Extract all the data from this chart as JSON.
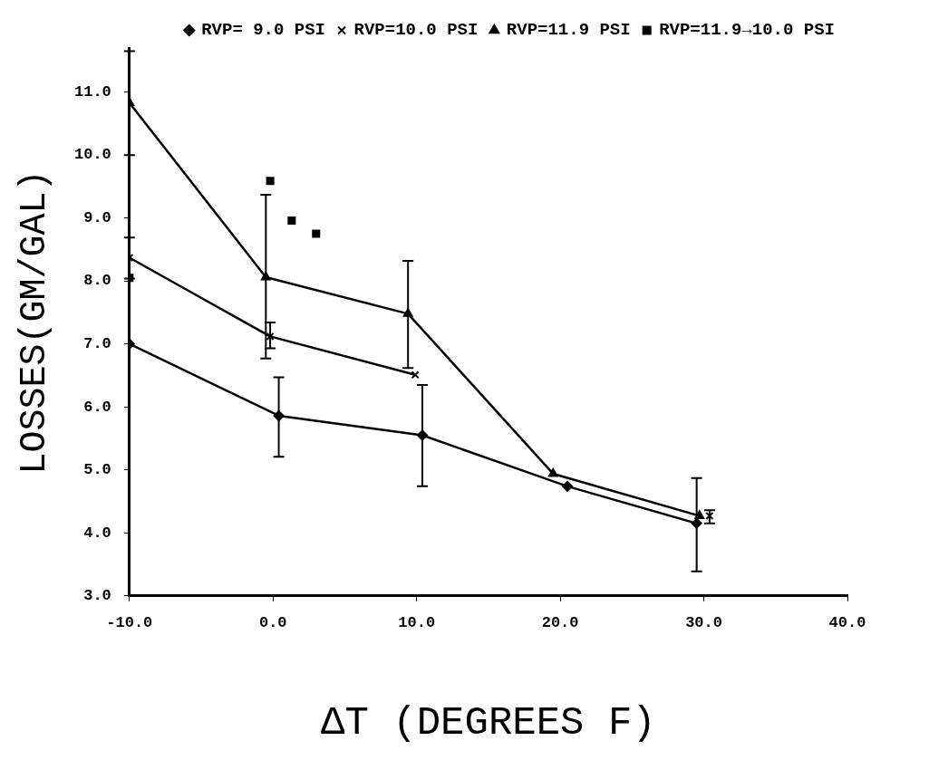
{
  "chart_data": {
    "type": "line",
    "xlabel": "ΔT (DEGREES F)",
    "ylabel": "LOSSES(GM/GAL)",
    "xlim": [
      -10,
      40
    ],
    "ylim": [
      3,
      11.7
    ],
    "xticks": [
      {
        "value": -10,
        "label": "-10.0"
      },
      {
        "value": 0,
        "label": "0.0"
      },
      {
        "value": 10,
        "label": "10.0"
      },
      {
        "value": 20,
        "label": "20.0"
      },
      {
        "value": 30,
        "label": "30.0"
      },
      {
        "value": 40,
        "label": "40.0"
      }
    ],
    "yticks": [
      {
        "value": 3,
        "label": "3.0"
      },
      {
        "value": 4,
        "label": "4.0"
      },
      {
        "value": 5,
        "label": "5.0"
      },
      {
        "value": 6,
        "label": "6.0"
      },
      {
        "value": 7,
        "label": "7.0"
      },
      {
        "value": 8,
        "label": "8.0"
      },
      {
        "value": 9,
        "label": "9.0"
      },
      {
        "value": 10,
        "label": "10.0"
      },
      {
        "value": 11,
        "label": "11.0"
      }
    ],
    "grid": false,
    "legend": "top right",
    "series": [
      {
        "name": "RVP= 9.0 PSI",
        "color": "#000000",
        "marker": "diamond",
        "x": [
          -10,
          0.4,
          10.4,
          20.5,
          29.5
        ],
        "values": [
          7.0,
          5.86,
          5.55,
          4.74,
          4.15
        ],
        "errors": [
          null,
          [
            5.21,
            6.47
          ],
          [
            4.74,
            6.35
          ],
          null,
          [
            3.39,
            4.87
          ]
        ]
      },
      {
        "name": "RVP=10.0 PSI",
        "color": "#000000",
        "marker": "cross",
        "x": [
          -10,
          -0.2,
          9.9,
          20,
          30.4
        ],
        "values": [
          8.37,
          7.12,
          6.51,
          null,
          4.27
        ],
        "errors": [
          [
            8.04,
            8.69
          ],
          [
            6.93,
            7.34
          ],
          null,
          null,
          [
            4.15,
            4.36
          ]
        ]
      },
      {
        "name": "RVP=11.9 PSI",
        "color": "#000000",
        "marker": "triangle",
        "x": [
          -10,
          -0.5,
          9.4,
          19.5,
          29.7
        ],
        "values": [
          10.83,
          8.06,
          7.48,
          4.94,
          4.27
        ],
        "errors": [
          [
            10.0,
            11.65
          ],
          [
            6.77,
            9.37
          ],
          [
            6.62,
            8.32
          ],
          null,
          null
        ]
      },
      {
        "name": "RVP=11.9→10.0 PSI",
        "type": "scatter",
        "color": "#000000",
        "marker": "square",
        "x": [
          -10,
          -0.2,
          1.3,
          3.0
        ],
        "values": [
          8.05,
          9.59,
          8.96,
          8.75
        ]
      }
    ]
  }
}
